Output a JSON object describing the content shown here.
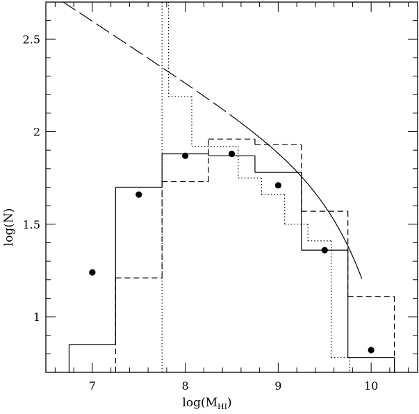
{
  "chart_data": {
    "type": "line",
    "title": "",
    "xlabel": "log(M",
    "xlabel_sub": "HI",
    "xlabel_close": ")",
    "ylabel": "log(N)",
    "xlim": [
      6.5,
      10.5
    ],
    "ylim": [
      0.7,
      2.7
    ],
    "xticks": [
      7,
      8,
      9,
      10
    ],
    "xtick_labels": [
      "7",
      "8",
      "9",
      "10"
    ],
    "yticks": [
      1,
      1.5,
      2,
      2.5
    ],
    "ytick_labels": [
      "1",
      "1.5",
      "2",
      "2.5"
    ],
    "grid": false,
    "series": [
      {
        "style": "solid-step",
        "edges": [
          6.75,
          7.25,
          7.75,
          8.25,
          8.75,
          9.25,
          9.75,
          10.25
        ],
        "values": [
          0.85,
          1.7,
          1.88,
          1.87,
          1.78,
          1.36,
          0.78
        ]
      },
      {
        "style": "dashed-step",
        "edges": [
          7.25,
          7.75,
          8.25,
          8.75,
          9.25,
          9.75,
          10.25
        ],
        "values": [
          1.21,
          1.73,
          1.96,
          1.93,
          1.57,
          1.11
        ]
      },
      {
        "style": "dotted-step",
        "edges": [
          7.75,
          7.82,
          8.07,
          8.57,
          8.82,
          9.07,
          9.32,
          9.57,
          9.77,
          9.95
        ],
        "values": [
          2.7,
          2.19,
          1.92,
          1.75,
          1.66,
          1.5,
          1.41,
          0.78,
          0.7
        ]
      },
      {
        "style": "points",
        "x": [
          7.0,
          7.5,
          8.0,
          8.5,
          9.0,
          9.5,
          10.0
        ],
        "y": [
          1.24,
          1.66,
          1.87,
          1.88,
          1.71,
          1.36,
          0.82
        ]
      },
      {
        "style": "schechter-fit",
        "log_m_star": 9.9,
        "log_theta_star": 1.64,
        "alpha": -1.33,
        "x_range": [
          6.5,
          9.9
        ],
        "dashed_below": 8.6
      }
    ]
  }
}
